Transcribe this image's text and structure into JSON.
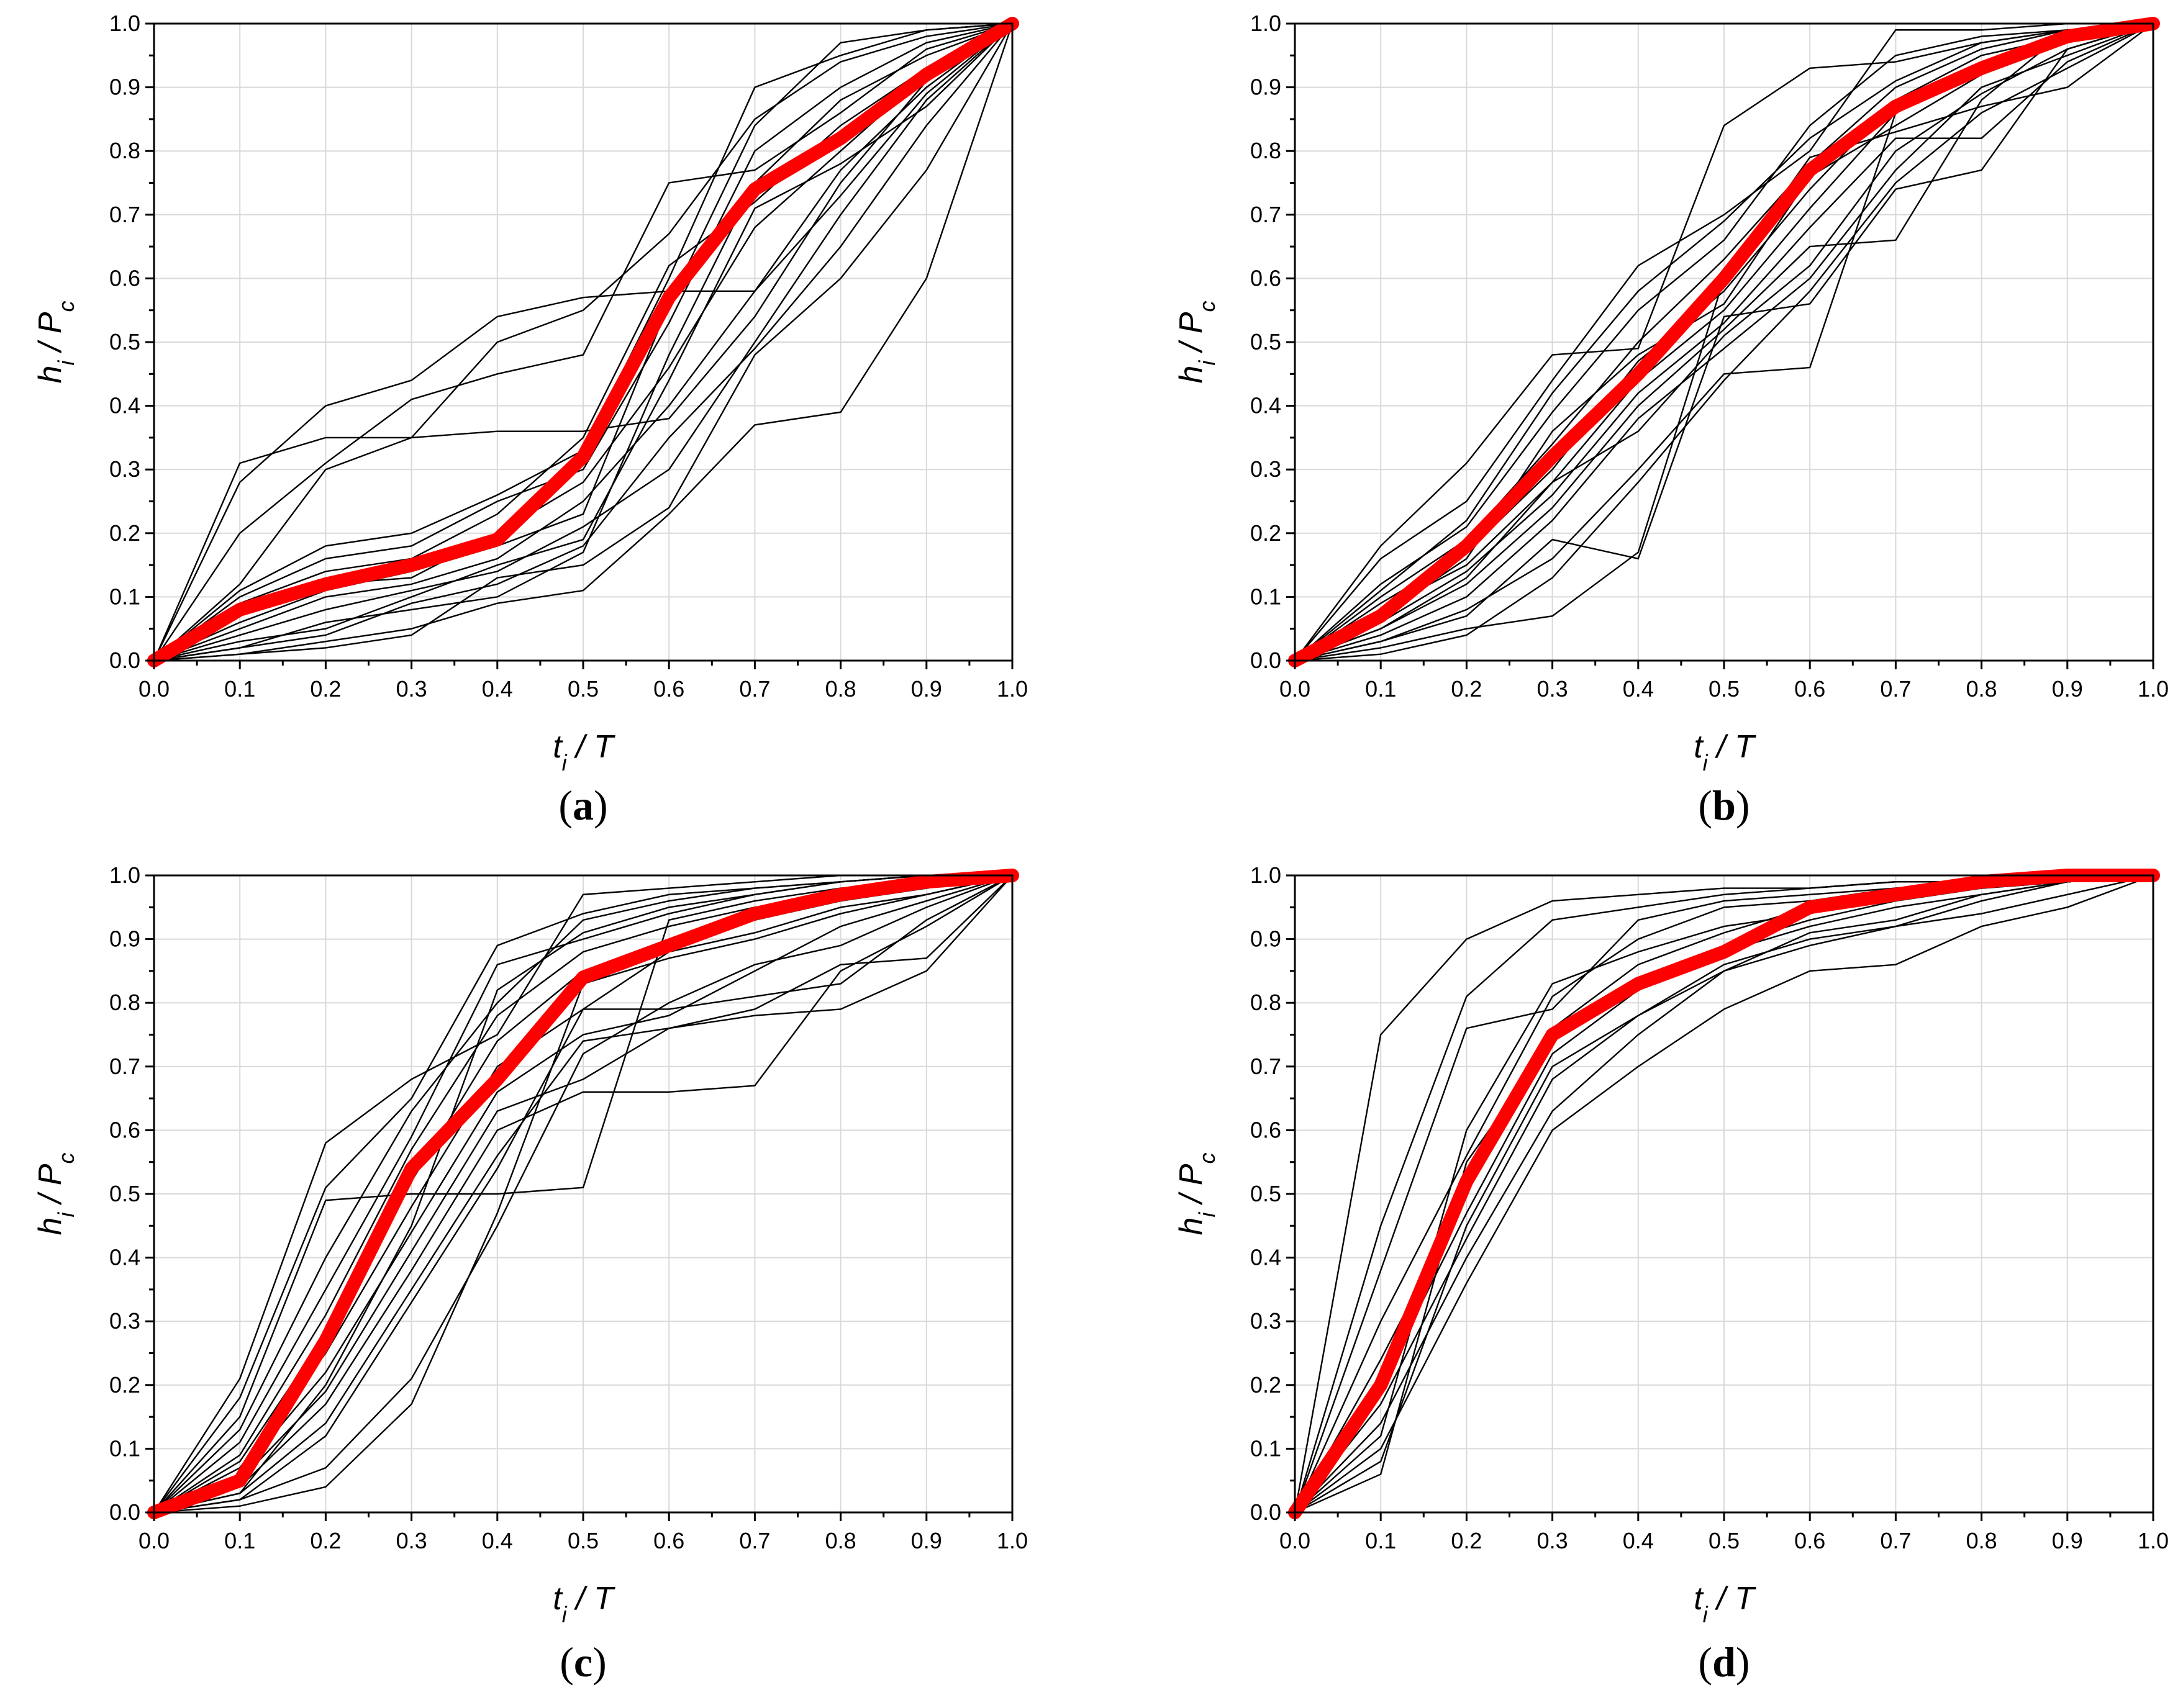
{
  "chart_data": [
    {
      "panel": "(a)",
      "panel_letter": "a",
      "type": "line",
      "xlabel": "t_i / T",
      "ylabel": "h_i / P_c",
      "xlim": [
        0,
        1
      ],
      "ylim": [
        0,
        1
      ],
      "x": [
        0,
        0.1,
        0.2,
        0.3,
        0.4,
        0.5,
        0.6,
        0.7,
        0.8,
        0.9,
        1.0
      ],
      "xticks": [
        "0.0",
        "0.1",
        "0.2",
        "0.3",
        "0.4",
        "0.5",
        "0.6",
        "0.7",
        "0.8",
        "0.9",
        "1.0"
      ],
      "yticks": [
        "0.0",
        "0.1",
        "0.2",
        "0.3",
        "0.4",
        "0.5",
        "0.6",
        "0.7",
        "0.8",
        "0.9",
        "1.0"
      ],
      "mean_series": {
        "name": "mean",
        "color": "#ff0000",
        "values": [
          0.0,
          0.08,
          0.12,
          0.15,
          0.19,
          0.32,
          0.57,
          0.74,
          0.82,
          0.92,
          1.0
        ]
      },
      "series": [
        [
          0.0,
          0.31,
          0.35,
          0.35,
          0.36,
          0.36,
          0.38,
          0.54,
          0.75,
          0.91,
          1.0
        ],
        [
          0.0,
          0.28,
          0.4,
          0.44,
          0.54,
          0.57,
          0.58,
          0.58,
          0.73,
          0.89,
          1.0
        ],
        [
          0.0,
          0.2,
          0.31,
          0.41,
          0.45,
          0.48,
          0.75,
          0.77,
          0.86,
          0.96,
          1.0
        ],
        [
          0.0,
          0.12,
          0.3,
          0.35,
          0.5,
          0.55,
          0.67,
          0.85,
          0.94,
          0.98,
          1.0
        ],
        [
          0.0,
          0.11,
          0.18,
          0.2,
          0.26,
          0.33,
          0.6,
          0.9,
          0.95,
          0.99,
          1.0
        ],
        [
          0.0,
          0.1,
          0.16,
          0.18,
          0.25,
          0.3,
          0.53,
          0.8,
          0.9,
          0.97,
          1.0
        ],
        [
          0.0,
          0.09,
          0.14,
          0.16,
          0.23,
          0.35,
          0.62,
          0.72,
          0.84,
          0.93,
          1.0
        ],
        [
          0.0,
          0.07,
          0.12,
          0.13,
          0.2,
          0.28,
          0.46,
          0.68,
          0.8,
          0.92,
          1.0
        ],
        [
          0.0,
          0.05,
          0.1,
          0.12,
          0.16,
          0.25,
          0.4,
          0.58,
          0.77,
          0.9,
          1.0
        ],
        [
          0.0,
          0.04,
          0.08,
          0.11,
          0.14,
          0.21,
          0.3,
          0.5,
          0.7,
          0.88,
          1.0
        ],
        [
          0.0,
          0.03,
          0.05,
          0.1,
          0.15,
          0.19,
          0.44,
          0.71,
          0.78,
          0.87,
          1.0
        ],
        [
          0.0,
          0.02,
          0.04,
          0.09,
          0.12,
          0.18,
          0.35,
          0.49,
          0.65,
          0.84,
          1.0
        ],
        [
          0.0,
          0.01,
          0.03,
          0.05,
          0.09,
          0.11,
          0.23,
          0.37,
          0.39,
          0.6,
          1.0
        ],
        [
          0.0,
          0.01,
          0.02,
          0.04,
          0.13,
          0.15,
          0.24,
          0.48,
          0.6,
          0.77,
          1.0
        ],
        [
          0.0,
          0.06,
          0.11,
          0.14,
          0.18,
          0.23,
          0.56,
          0.84,
          0.97,
          0.99,
          1.0
        ],
        [
          0.0,
          0.02,
          0.06,
          0.08,
          0.1,
          0.17,
          0.48,
          0.75,
          0.88,
          0.95,
          1.0
        ]
      ]
    },
    {
      "panel": "(b)",
      "panel_letter": "b",
      "type": "line",
      "xlabel": "t_i / T",
      "ylabel": "h_i / P_c",
      "xlim": [
        0,
        1
      ],
      "ylim": [
        0,
        1
      ],
      "x": [
        0,
        0.1,
        0.2,
        0.3,
        0.4,
        0.5,
        0.6,
        0.7,
        0.8,
        0.9,
        1.0
      ],
      "xticks": [
        "0.0",
        "0.1",
        "0.2",
        "0.3",
        "0.4",
        "0.5",
        "0.6",
        "0.7",
        "0.8",
        "0.9",
        "1.0"
      ],
      "yticks": [
        "0.0",
        "0.1",
        "0.2",
        "0.3",
        "0.4",
        "0.5",
        "0.6",
        "0.7",
        "0.8",
        "0.9",
        "1.0"
      ],
      "mean_series": {
        "name": "mean",
        "color": "#ff0000",
        "values": [
          0.0,
          0.07,
          0.18,
          0.32,
          0.45,
          0.6,
          0.77,
          0.87,
          0.93,
          0.98,
          1.0
        ]
      },
      "series": [
        [
          0.0,
          0.18,
          0.31,
          0.48,
          0.49,
          0.84,
          0.93,
          0.94,
          0.97,
          0.99,
          1.0
        ],
        [
          0.0,
          0.16,
          0.25,
          0.44,
          0.62,
          0.7,
          0.8,
          0.99,
          0.99,
          1.0,
          1.0
        ],
        [
          0.0,
          0.12,
          0.21,
          0.39,
          0.55,
          0.66,
          0.84,
          0.95,
          0.98,
          0.99,
          1.0
        ],
        [
          0.0,
          0.1,
          0.19,
          0.34,
          0.5,
          0.63,
          0.78,
          0.9,
          0.96,
          0.99,
          1.0
        ],
        [
          0.0,
          0.09,
          0.17,
          0.3,
          0.47,
          0.58,
          0.74,
          0.88,
          0.95,
          0.98,
          1.0
        ],
        [
          0.0,
          0.08,
          0.15,
          0.28,
          0.44,
          0.55,
          0.71,
          0.86,
          0.93,
          0.97,
          1.0
        ],
        [
          0.0,
          0.06,
          0.14,
          0.26,
          0.42,
          0.53,
          0.68,
          0.82,
          0.82,
          0.94,
          1.0
        ],
        [
          0.0,
          0.05,
          0.12,
          0.24,
          0.4,
          0.52,
          0.65,
          0.66,
          0.88,
          0.99,
          1.0
        ],
        [
          0.0,
          0.04,
          0.1,
          0.22,
          0.38,
          0.49,
          0.6,
          0.77,
          0.9,
          0.95,
          1.0
        ],
        [
          0.0,
          0.03,
          0.08,
          0.16,
          0.3,
          0.45,
          0.46,
          0.86,
          0.94,
          0.98,
          1.0
        ],
        [
          0.0,
          0.03,
          0.07,
          0.19,
          0.16,
          0.54,
          0.56,
          0.74,
          0.77,
          0.96,
          1.0
        ],
        [
          0.0,
          0.02,
          0.05,
          0.07,
          0.17,
          0.6,
          0.79,
          0.83,
          0.87,
          0.9,
          1.0
        ],
        [
          0.0,
          0.01,
          0.04,
          0.13,
          0.28,
          0.44,
          0.58,
          0.75,
          0.86,
          0.93,
          1.0
        ],
        [
          0.0,
          0.11,
          0.22,
          0.42,
          0.58,
          0.69,
          0.82,
          0.91,
          0.97,
          0.99,
          1.0
        ],
        [
          0.0,
          0.07,
          0.16,
          0.36,
          0.48,
          0.56,
          0.76,
          0.84,
          0.92,
          0.97,
          1.0
        ],
        [
          0.0,
          0.05,
          0.13,
          0.28,
          0.36,
          0.51,
          0.62,
          0.8,
          0.89,
          0.96,
          1.0
        ]
      ]
    },
    {
      "panel": "(c)",
      "panel_letter": "c",
      "type": "line",
      "xlabel": "t_i / T",
      "ylabel": "h_i / P_c",
      "xlim": [
        0,
        1
      ],
      "ylim": [
        0,
        1
      ],
      "x": [
        0,
        0.1,
        0.2,
        0.3,
        0.4,
        0.5,
        0.6,
        0.7,
        0.8,
        0.9,
        1.0
      ],
      "xticks": [
        "0.0",
        "0.1",
        "0.2",
        "0.3",
        "0.4",
        "0.5",
        "0.6",
        "0.7",
        "0.8",
        "0.9",
        "1.0"
      ],
      "yticks": [
        "0.0",
        "0.1",
        "0.2",
        "0.3",
        "0.4",
        "0.5",
        "0.6",
        "0.7",
        "0.8",
        "0.9",
        "1.0"
      ],
      "mean_series": {
        "name": "mean",
        "color": "#ff0000",
        "values": [
          0.0,
          0.05,
          0.27,
          0.54,
          0.68,
          0.84,
          0.89,
          0.94,
          0.97,
          0.99,
          1.0
        ]
      },
      "series": [
        [
          0.0,
          0.21,
          0.58,
          0.68,
          0.75,
          0.97,
          0.98,
          0.99,
          1.0,
          1.0,
          1.0
        ],
        [
          0.0,
          0.18,
          0.51,
          0.65,
          0.89,
          0.94,
          0.97,
          0.98,
          0.99,
          1.0,
          1.0
        ],
        [
          0.0,
          0.15,
          0.49,
          0.5,
          0.5,
          0.51,
          0.93,
          0.96,
          0.98,
          0.99,
          1.0
        ],
        [
          0.0,
          0.13,
          0.4,
          0.63,
          0.8,
          0.93,
          0.96,
          0.98,
          0.99,
          1.0,
          1.0
        ],
        [
          0.0,
          0.11,
          0.35,
          0.59,
          0.86,
          0.9,
          0.94,
          0.97,
          0.99,
          1.0,
          1.0
        ],
        [
          0.0,
          0.09,
          0.31,
          0.57,
          0.78,
          0.88,
          0.92,
          0.95,
          0.97,
          0.99,
          1.0
        ],
        [
          0.0,
          0.08,
          0.28,
          0.52,
          0.74,
          0.85,
          0.9,
          0.93,
          0.96,
          0.98,
          1.0
        ],
        [
          0.0,
          0.07,
          0.25,
          0.48,
          0.7,
          0.79,
          0.88,
          0.91,
          0.95,
          0.97,
          1.0
        ],
        [
          0.0,
          0.06,
          0.22,
          0.44,
          0.66,
          0.75,
          0.78,
          0.85,
          0.92,
          0.96,
          1.0
        ],
        [
          0.0,
          0.05,
          0.19,
          0.41,
          0.63,
          0.68,
          0.76,
          0.79,
          0.86,
          0.87,
          1.0
        ],
        [
          0.0,
          0.04,
          0.17,
          0.38,
          0.6,
          0.66,
          0.66,
          0.67,
          0.85,
          0.92,
          1.0
        ],
        [
          0.0,
          0.03,
          0.14,
          0.35,
          0.56,
          0.74,
          0.76,
          0.78,
          0.79,
          0.85,
          1.0
        ],
        [
          0.0,
          0.02,
          0.12,
          0.33,
          0.54,
          0.79,
          0.79,
          0.81,
          0.83,
          0.93,
          1.0
        ],
        [
          0.0,
          0.02,
          0.07,
          0.21,
          0.45,
          0.72,
          0.8,
          0.86,
          0.89,
          0.95,
          1.0
        ],
        [
          0.0,
          0.01,
          0.04,
          0.17,
          0.47,
          0.83,
          0.87,
          0.9,
          0.94,
          0.97,
          1.0
        ],
        [
          0.0,
          0.03,
          0.2,
          0.45,
          0.82,
          0.91,
          0.95,
          0.97,
          0.99,
          1.0,
          1.0
        ]
      ]
    },
    {
      "panel": "(d)",
      "panel_letter": "d",
      "type": "line",
      "xlabel": "t_i / T",
      "ylabel": "h_i / P_c",
      "xlim": [
        0,
        1
      ],
      "ylim": [
        0,
        1
      ],
      "x": [
        0,
        0.1,
        0.2,
        0.3,
        0.4,
        0.5,
        0.6,
        0.7,
        0.8,
        0.9,
        1.0
      ],
      "xticks": [
        "0.0",
        "0.1",
        "0.2",
        "0.3",
        "0.4",
        "0.5",
        "0.6",
        "0.7",
        "0.8",
        "0.9",
        "1.0"
      ],
      "yticks": [
        "0.0",
        "0.1",
        "0.2",
        "0.3",
        "0.4",
        "0.5",
        "0.6",
        "0.7",
        "0.8",
        "0.9",
        "1.0"
      ],
      "mean_series": {
        "name": "mean",
        "color": "#ff0000",
        "values": [
          0.0,
          0.2,
          0.52,
          0.75,
          0.83,
          0.88,
          0.95,
          0.97,
          0.99,
          1.0,
          1.0
        ]
      },
      "series": [
        [
          0.0,
          0.75,
          0.9,
          0.96,
          0.97,
          0.98,
          0.98,
          0.99,
          0.99,
          1.0,
          1.0
        ],
        [
          0.0,
          0.45,
          0.81,
          0.93,
          0.95,
          0.97,
          0.98,
          0.99,
          0.99,
          1.0,
          1.0
        ],
        [
          0.0,
          0.38,
          0.76,
          0.79,
          0.93,
          0.96,
          0.97,
          0.98,
          0.99,
          1.0,
          1.0
        ],
        [
          0.0,
          0.3,
          0.56,
          0.81,
          0.9,
          0.95,
          0.96,
          0.98,
          0.99,
          1.0,
          1.0
        ],
        [
          0.0,
          0.24,
          0.5,
          0.76,
          0.86,
          0.91,
          0.95,
          0.97,
          0.98,
          0.99,
          1.0
        ],
        [
          0.0,
          0.2,
          0.47,
          0.72,
          0.82,
          0.88,
          0.92,
          0.95,
          0.97,
          0.99,
          1.0
        ],
        [
          0.0,
          0.17,
          0.43,
          0.68,
          0.78,
          0.86,
          0.9,
          0.92,
          0.94,
          0.97,
          1.0
        ],
        [
          0.0,
          0.14,
          0.4,
          0.63,
          0.75,
          0.85,
          0.89,
          0.92,
          0.96,
          0.99,
          1.0
        ],
        [
          0.0,
          0.1,
          0.36,
          0.6,
          0.7,
          0.79,
          0.85,
          0.86,
          0.92,
          0.95,
          1.0
        ],
        [
          0.0,
          0.08,
          0.45,
          0.7,
          0.78,
          0.85,
          0.91,
          0.93,
          0.97,
          0.99,
          1.0
        ],
        [
          0.0,
          0.06,
          0.55,
          0.74,
          0.83,
          0.89,
          0.93,
          0.96,
          0.98,
          1.0,
          1.0
        ],
        [
          0.0,
          0.12,
          0.6,
          0.83,
          0.88,
          0.92,
          0.94,
          0.97,
          0.98,
          0.99,
          1.0
        ]
      ]
    }
  ]
}
